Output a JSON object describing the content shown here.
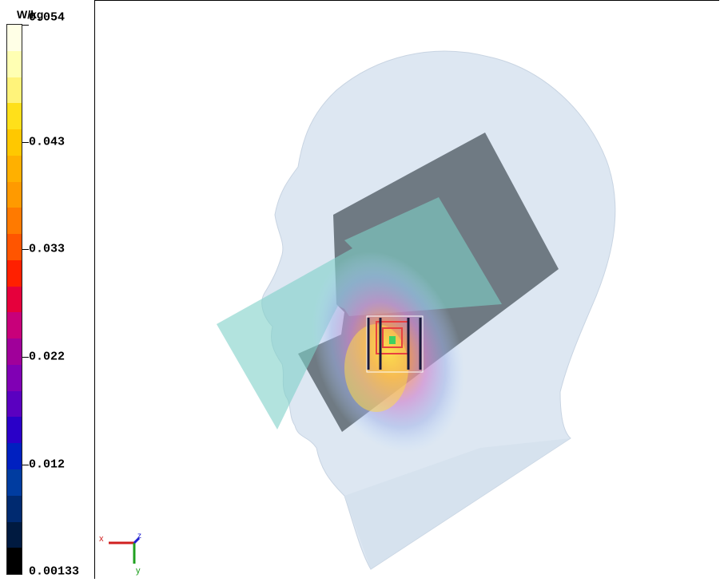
{
  "legend": {
    "unit": "W/kg",
    "max_label": "0.054",
    "labels": [
      "0.054",
      "0.043",
      "0.033",
      "0.022",
      "0.012",
      "0.00133"
    ],
    "colors": [
      "#FFFFE6",
      "#FFFFB3",
      "#FFF37A",
      "#FFE01A",
      "#FFC800",
      "#FFB000",
      "#FF9A00",
      "#FF7A00",
      "#FF5500",
      "#FF2000",
      "#E6003C",
      "#C8007A",
      "#A0009A",
      "#8000B4",
      "#5A00C0",
      "#2A00C8",
      "#0020C0",
      "#003CA0",
      "#002A70",
      "#001A40",
      "#000000"
    ]
  },
  "axes": {
    "x_label": "x",
    "y_label": "y",
    "z_label": "z"
  }
}
